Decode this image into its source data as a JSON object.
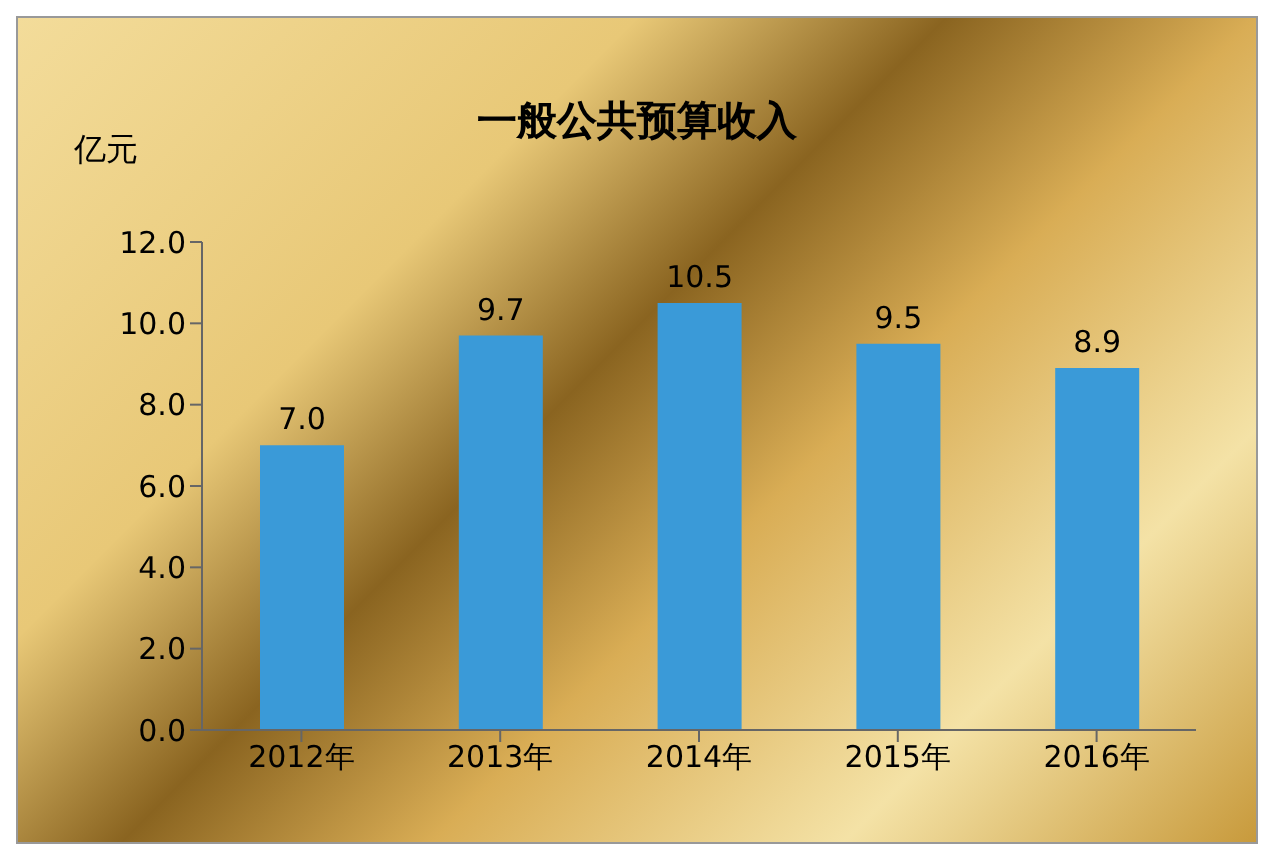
{
  "chart_data": {
    "type": "bar",
    "title": "一般公共预算收入",
    "ylabel": "亿元",
    "categories": [
      "2012年",
      "2013年",
      "2014年",
      "2015年",
      "2016年"
    ],
    "values": [
      7.0,
      9.7,
      10.5,
      9.5,
      8.9
    ],
    "color": "#3a9ad8",
    "ylim": [
      0,
      12
    ],
    "yticks": [
      {
        "value": 0,
        "label": "0.0"
      },
      {
        "value": 2,
        "label": "2.0"
      },
      {
        "value": 4,
        "label": "4.0"
      },
      {
        "value": 6,
        "label": "6.0"
      },
      {
        "value": 8,
        "label": "8.0"
      },
      {
        "value": 10,
        "label": "10.0"
      },
      {
        "value": 12,
        "label": "12.0"
      }
    ],
    "value_labels": [
      "7.0",
      "9.7",
      "10.5",
      "9.5",
      "8.9"
    ],
    "grid": false,
    "legend": false
  }
}
